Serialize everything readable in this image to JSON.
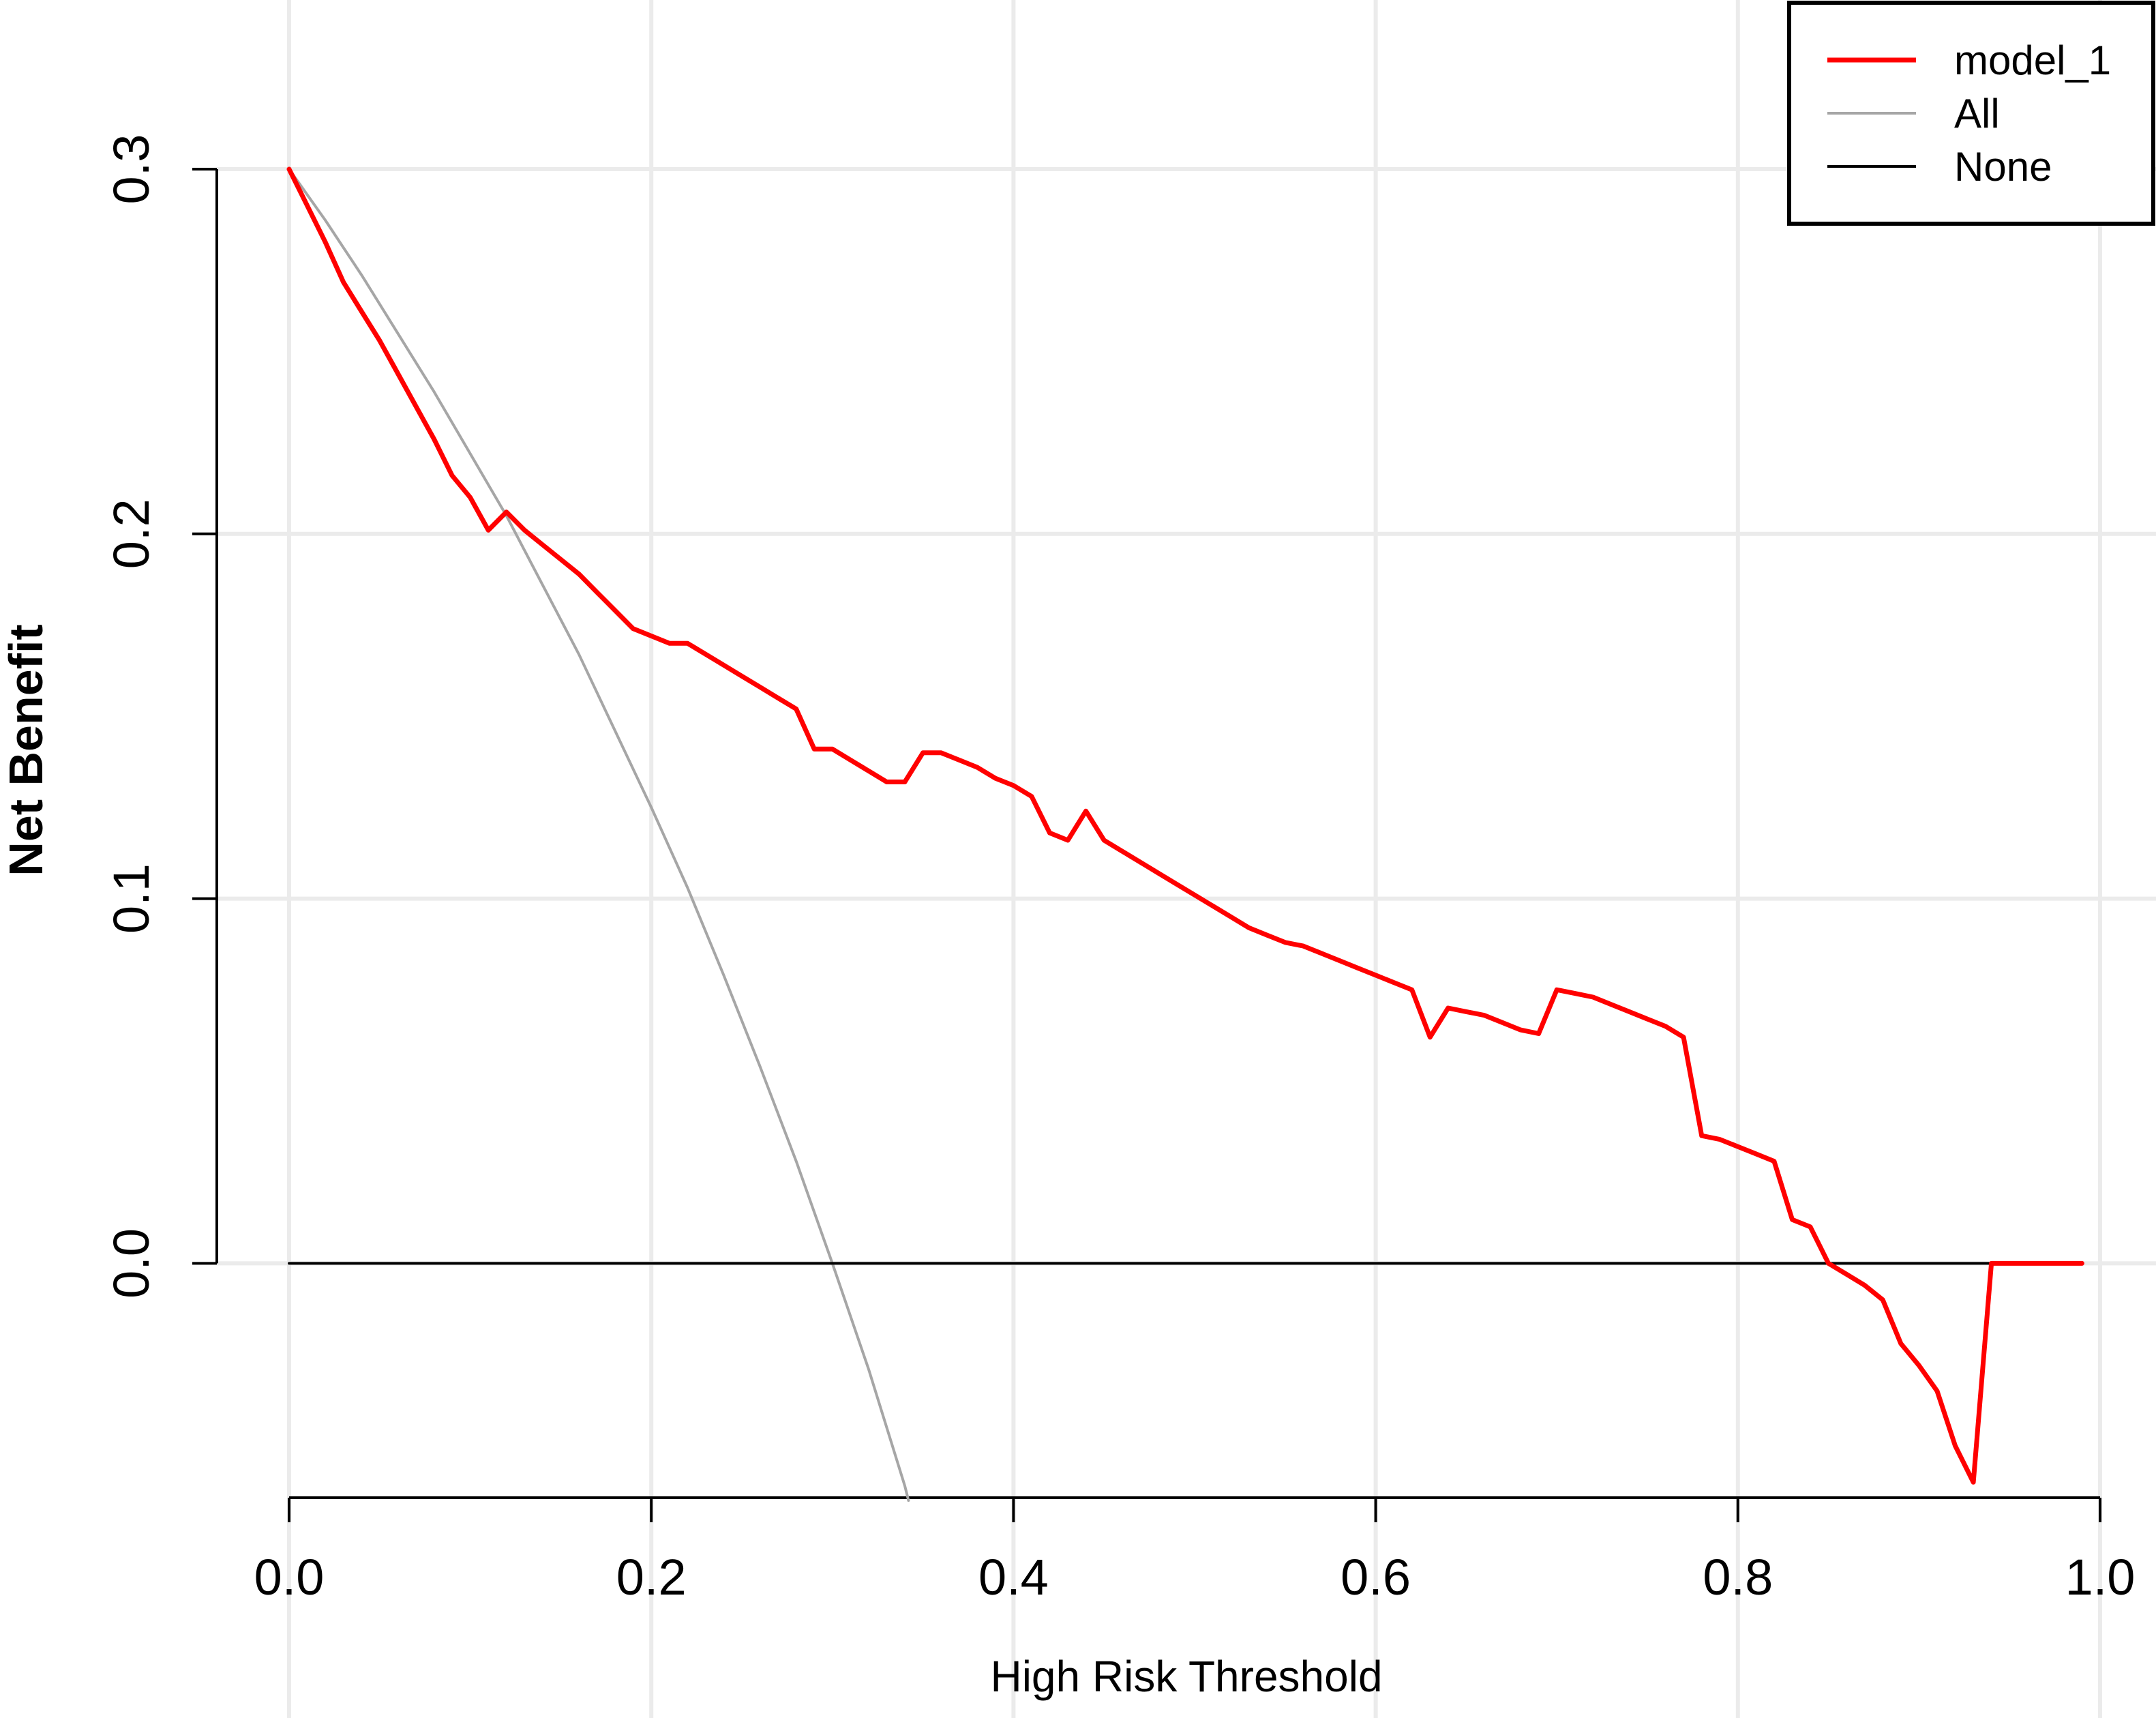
{
  "chart_data": {
    "type": "line",
    "title": "",
    "xlabel": "High Risk Threshold",
    "ylabel": "Net Benefit",
    "xlim": [
      0.0,
      1.0
    ],
    "ylim": [
      -0.065,
      0.3
    ],
    "x_ticks": [
      "0.0",
      "0.2",
      "0.4",
      "0.6",
      "0.8",
      "1.0"
    ],
    "y_ticks": [
      "0.0",
      "0.1",
      "0.2",
      "0.3"
    ],
    "grid": true,
    "legend_position": "top-right",
    "series": [
      {
        "name": "model_1",
        "color": "#ff0000",
        "x": [
          0.0,
          0.01,
          0.02,
          0.03,
          0.04,
          0.05,
          0.06,
          0.07,
          0.08,
          0.09,
          0.1,
          0.11,
          0.12,
          0.13,
          0.14,
          0.15,
          0.16,
          0.17,
          0.18,
          0.19,
          0.2,
          0.21,
          0.22,
          0.23,
          0.24,
          0.25,
          0.26,
          0.27,
          0.28,
          0.29,
          0.3,
          0.31,
          0.32,
          0.33,
          0.34,
          0.35,
          0.36,
          0.37,
          0.38,
          0.39,
          0.4,
          0.41,
          0.42,
          0.43,
          0.44,
          0.45,
          0.46,
          0.47,
          0.48,
          0.49,
          0.5,
          0.51,
          0.52,
          0.53,
          0.54,
          0.55,
          0.56,
          0.57,
          0.58,
          0.59,
          0.6,
          0.61,
          0.62,
          0.63,
          0.64,
          0.65,
          0.66,
          0.67,
          0.68,
          0.69,
          0.7,
          0.71,
          0.72,
          0.73,
          0.74,
          0.75,
          0.76,
          0.77,
          0.78,
          0.79,
          0.8,
          0.81,
          0.82,
          0.83,
          0.84,
          0.85,
          0.86,
          0.87,
          0.88,
          0.89,
          0.9,
          0.91,
          0.92,
          0.93,
          0.94,
          0.95,
          0.96,
          0.97,
          0.98,
          0.99
        ],
        "values": [
          0.3,
          0.29,
          0.28,
          0.269,
          0.261,
          0.253,
          0.244,
          0.235,
          0.226,
          0.216,
          0.21,
          0.201,
          0.206,
          0.201,
          0.197,
          0.193,
          0.189,
          0.184,
          0.179,
          0.174,
          0.172,
          0.17,
          0.17,
          0.167,
          0.164,
          0.161,
          0.158,
          0.155,
          0.152,
          0.141,
          0.141,
          0.138,
          0.135,
          0.132,
          0.132,
          0.14,
          0.14,
          0.138,
          0.136,
          0.133,
          0.131,
          0.128,
          0.118,
          0.116,
          0.124,
          0.116,
          0.113,
          0.11,
          0.107,
          0.104,
          0.101,
          0.098,
          0.095,
          0.092,
          0.09,
          0.088,
          0.087,
          0.085,
          0.083,
          0.081,
          0.079,
          0.077,
          0.075,
          0.062,
          0.07,
          0.069,
          0.068,
          0.066,
          0.064,
          0.063,
          0.075,
          0.074,
          0.073,
          0.071,
          0.069,
          0.067,
          0.065,
          0.062,
          0.035,
          0.034,
          0.032,
          0.03,
          0.028,
          0.012,
          0.01,
          0.0,
          -0.003,
          -0.006,
          -0.01,
          -0.022,
          -0.028,
          -0.035,
          -0.05,
          -0.06,
          0.0,
          0.0,
          0.0,
          0.0,
          0.0,
          0.0
        ]
      },
      {
        "name": "All",
        "color": "#a6a6a6",
        "x": [
          0.0,
          0.02,
          0.04,
          0.06,
          0.08,
          0.1,
          0.12,
          0.14,
          0.16,
          0.18,
          0.2,
          0.22,
          0.24,
          0.26,
          0.28,
          0.3,
          0.32,
          0.34,
          0.342
        ],
        "values": [
          0.3,
          0.286,
          0.271,
          0.255,
          0.239,
          0.222,
          0.205,
          0.186,
          0.167,
          0.146,
          0.125,
          0.103,
          0.079,
          0.054,
          0.028,
          0.0,
          -0.029,
          -0.061,
          -0.065
        ]
      },
      {
        "name": "None",
        "color": "#000000",
        "x": [
          0.0,
          0.99
        ],
        "values": [
          0.0,
          0.0
        ]
      }
    ]
  }
}
